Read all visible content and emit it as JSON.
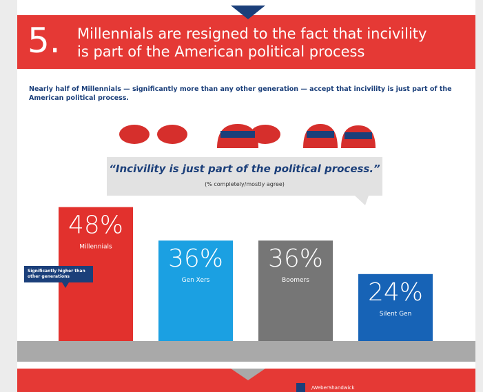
{
  "chart_data": {
    "type": "bar",
    "number": "5.",
    "title": "Millennials are resigned to the fact that incivility is part of the American political process",
    "subtitle": "Nearly half of Millennials — significantly more than any other generation — accept that incivility is just part of the American political process.",
    "quote": "“Incivility is just part of the political process.”",
    "note": "(% completely/mostly agree)",
    "categories": [
      "Millennials",
      "Gen Xers",
      "Boomers",
      "Silent Gen"
    ],
    "values": [
      48,
      36,
      36,
      24
    ],
    "value_labels": [
      "48%",
      "36%",
      "36%",
      "24%"
    ],
    "colors": [
      "#e2312d",
      "#1ba0e2",
      "#767676",
      "#1763b6"
    ],
    "annotation": "Significantly higher than other generations",
    "footer_handle": "/WeberShandwick"
  }
}
